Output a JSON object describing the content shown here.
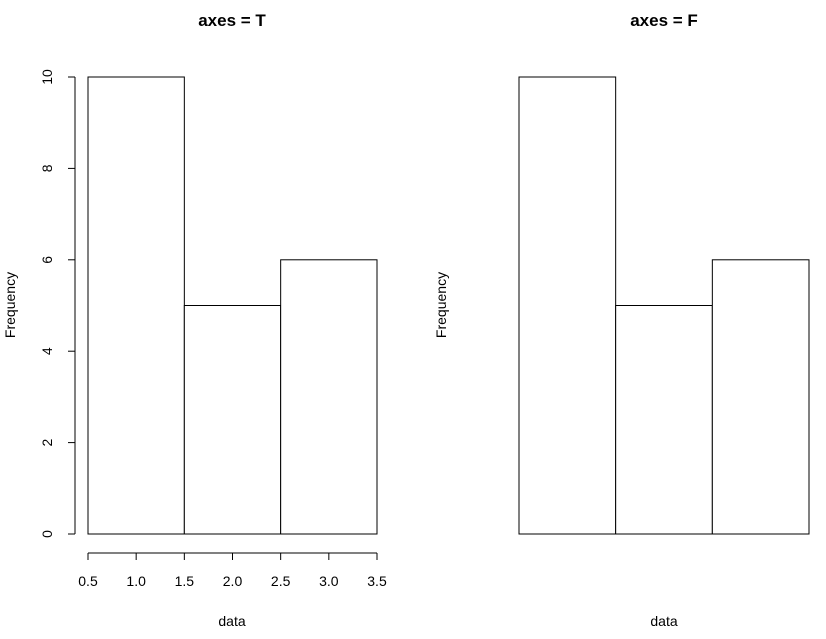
{
  "chart_data": [
    {
      "type": "bar",
      "title": "axes = T",
      "xlabel": "data",
      "ylabel": "Frequency",
      "bins": [
        [
          0.5,
          1.5
        ],
        [
          1.5,
          2.5
        ],
        [
          2.5,
          3.5
        ]
      ],
      "values": [
        10,
        5,
        6
      ],
      "xlim": [
        0.5,
        3.5
      ],
      "ylim": [
        0,
        10
      ],
      "axes": true,
      "x_ticks": [
        0.5,
        1.0,
        1.5,
        2.0,
        2.5,
        3.0,
        3.5
      ],
      "x_tick_labels": [
        "0.5",
        "1.0",
        "1.5",
        "2.0",
        "2.5",
        "3.0",
        "3.5"
      ],
      "y_ticks": [
        0,
        2,
        4,
        6,
        8,
        10
      ],
      "y_tick_labels": [
        "0",
        "2",
        "4",
        "6",
        "8",
        "10"
      ],
      "grid": false
    },
    {
      "type": "bar",
      "title": "axes = F",
      "xlabel": "data",
      "ylabel": "Frequency",
      "bins": [
        [
          0.5,
          1.5
        ],
        [
          1.5,
          2.5
        ],
        [
          2.5,
          3.5
        ]
      ],
      "values": [
        10,
        5,
        6
      ],
      "xlim": [
        0.5,
        3.5
      ],
      "ylim": [
        0,
        10
      ],
      "axes": false,
      "grid": false
    }
  ]
}
